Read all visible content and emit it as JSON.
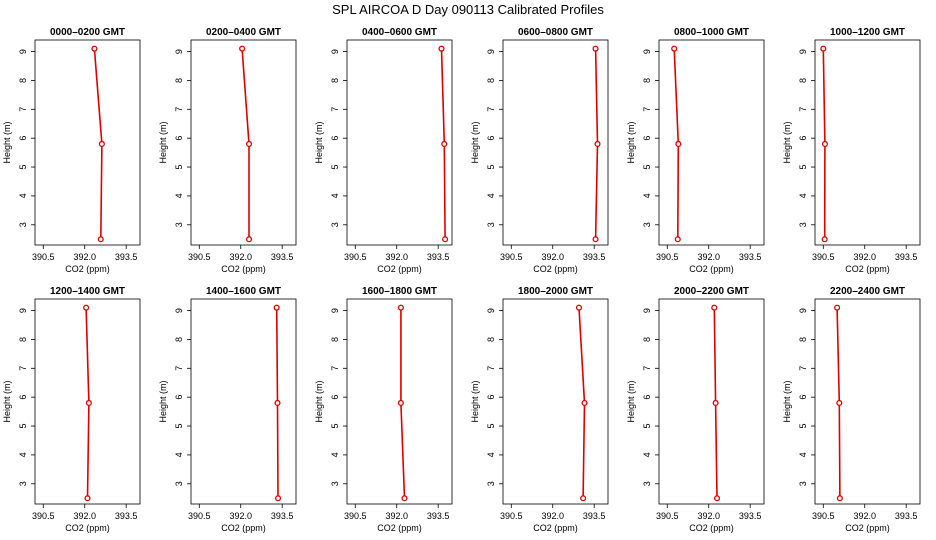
{
  "figure": {
    "title": "SPL AIRCOA D  Day 090113  Calibrated Profiles"
  },
  "chart_data": [
    {
      "type": "line",
      "title": "0000–0200 GMT",
      "xlabel": "CO2 (ppm)",
      "ylabel": "Height (m)",
      "xlim": [
        390.2,
        394.0
      ],
      "ylim": [
        2.3,
        9.4
      ],
      "xticks": [
        "390.5",
        "392.0",
        "393.5"
      ],
      "yticks": [
        "3",
        "4",
        "5",
        "6",
        "7",
        "8",
        "9"
      ],
      "grid": false,
      "points": [
        {
          "x": 392.58,
          "y": 2.5
        },
        {
          "x": 392.62,
          "y": 5.8
        },
        {
          "x": 392.35,
          "y": 9.1
        }
      ]
    },
    {
      "type": "line",
      "title": "0200–0400 GMT",
      "xlabel": "CO2 (ppm)",
      "ylabel": "Height (m)",
      "xlim": [
        390.2,
        394.0
      ],
      "ylim": [
        2.3,
        9.4
      ],
      "xticks": [
        "390.5",
        "392.0",
        "393.5"
      ],
      "yticks": [
        "3",
        "4",
        "5",
        "6",
        "7",
        "8",
        "9"
      ],
      "grid": false,
      "points": [
        {
          "x": 392.3,
          "y": 2.5
        },
        {
          "x": 392.3,
          "y": 5.8
        },
        {
          "x": 392.05,
          "y": 9.1
        }
      ]
    },
    {
      "type": "line",
      "title": "0400–0600 GMT",
      "xlabel": "CO2 (ppm)",
      "ylabel": "Height (m)",
      "xlim": [
        390.2,
        394.0
      ],
      "ylim": [
        2.3,
        9.4
      ],
      "xticks": [
        "390.5",
        "392.0",
        "393.5"
      ],
      "yticks": [
        "3",
        "4",
        "5",
        "6",
        "7",
        "8",
        "9"
      ],
      "grid": false,
      "points": [
        {
          "x": 393.75,
          "y": 2.5
        },
        {
          "x": 393.72,
          "y": 5.8
        },
        {
          "x": 393.62,
          "y": 9.1
        }
      ]
    },
    {
      "type": "line",
      "title": "0600–0800 GMT",
      "xlabel": "CO2 (ppm)",
      "ylabel": "Height (m)",
      "xlim": [
        390.2,
        394.0
      ],
      "ylim": [
        2.3,
        9.4
      ],
      "xticks": [
        "390.5",
        "392.0",
        "393.5"
      ],
      "yticks": [
        "3",
        "4",
        "5",
        "6",
        "7",
        "8",
        "9"
      ],
      "grid": false,
      "points": [
        {
          "x": 393.55,
          "y": 2.5
        },
        {
          "x": 393.62,
          "y": 5.8
        },
        {
          "x": 393.55,
          "y": 9.1
        }
      ]
    },
    {
      "type": "line",
      "title": "0800–1000 GMT",
      "xlabel": "CO2 (ppm)",
      "ylabel": "Height (m)",
      "xlim": [
        390.2,
        394.0
      ],
      "ylim": [
        2.3,
        9.4
      ],
      "xticks": [
        "390.5",
        "392.0",
        "393.5"
      ],
      "yticks": [
        "3",
        "4",
        "5",
        "6",
        "7",
        "8",
        "9"
      ],
      "grid": false,
      "points": [
        {
          "x": 390.88,
          "y": 2.5
        },
        {
          "x": 390.9,
          "y": 5.8
        },
        {
          "x": 390.75,
          "y": 9.1
        }
      ]
    },
    {
      "type": "line",
      "title": "1000–1200 GMT",
      "xlabel": "CO2 (ppm)",
      "ylabel": "Height (m)",
      "xlim": [
        390.2,
        394.0
      ],
      "ylim": [
        2.3,
        9.4
      ],
      "xticks": [
        "390.5",
        "392.0",
        "393.5"
      ],
      "yticks": [
        "3",
        "4",
        "5",
        "6",
        "7",
        "8",
        "9"
      ],
      "grid": false,
      "points": [
        {
          "x": 390.55,
          "y": 2.5
        },
        {
          "x": 390.56,
          "y": 5.8
        },
        {
          "x": 390.5,
          "y": 9.1
        }
      ]
    },
    {
      "type": "line",
      "title": "1200–1400 GMT",
      "xlabel": "CO2 (ppm)",
      "ylabel": "Height (m)",
      "xlim": [
        390.2,
        394.0
      ],
      "ylim": [
        2.3,
        9.4
      ],
      "xticks": [
        "390.5",
        "392.0",
        "393.5"
      ],
      "yticks": [
        "3",
        "4",
        "5",
        "6",
        "7",
        "8",
        "9"
      ],
      "grid": false,
      "points": [
        {
          "x": 392.1,
          "y": 2.5
        },
        {
          "x": 392.15,
          "y": 5.8
        },
        {
          "x": 392.05,
          "y": 9.1
        }
      ]
    },
    {
      "type": "line",
      "title": "1400–1600 GMT",
      "xlabel": "CO2 (ppm)",
      "ylabel": "Height (m)",
      "xlim": [
        390.2,
        394.0
      ],
      "ylim": [
        2.3,
        9.4
      ],
      "xticks": [
        "390.5",
        "392.0",
        "393.5"
      ],
      "yticks": [
        "3",
        "4",
        "5",
        "6",
        "7",
        "8",
        "9"
      ],
      "grid": false,
      "points": [
        {
          "x": 393.35,
          "y": 2.5
        },
        {
          "x": 393.33,
          "y": 5.8
        },
        {
          "x": 393.3,
          "y": 9.1
        }
      ]
    },
    {
      "type": "line",
      "title": "1600–1800 GMT",
      "xlabel": "CO2 (ppm)",
      "ylabel": "Height (m)",
      "xlim": [
        390.2,
        394.0
      ],
      "ylim": [
        2.3,
        9.4
      ],
      "xticks": [
        "390.5",
        "392.0",
        "393.5"
      ],
      "yticks": [
        "3",
        "4",
        "5",
        "6",
        "7",
        "8",
        "9"
      ],
      "grid": false,
      "points": [
        {
          "x": 392.28,
          "y": 2.5
        },
        {
          "x": 392.15,
          "y": 5.8
        },
        {
          "x": 392.15,
          "y": 9.1
        }
      ]
    },
    {
      "type": "line",
      "title": "1800–2000 GMT",
      "xlabel": "CO2 (ppm)",
      "ylabel": "Height (m)",
      "xlim": [
        390.2,
        394.0
      ],
      "ylim": [
        2.3,
        9.4
      ],
      "xticks": [
        "390.5",
        "392.0",
        "393.5"
      ],
      "yticks": [
        "3",
        "4",
        "5",
        "6",
        "7",
        "8",
        "9"
      ],
      "grid": false,
      "points": [
        {
          "x": 393.1,
          "y": 2.5
        },
        {
          "x": 393.15,
          "y": 5.8
        },
        {
          "x": 392.95,
          "y": 9.1
        }
      ]
    },
    {
      "type": "line",
      "title": "2000–2200 GMT",
      "xlabel": "CO2 (ppm)",
      "ylabel": "Height (m)",
      "xlim": [
        390.2,
        394.0
      ],
      "ylim": [
        2.3,
        9.4
      ],
      "xticks": [
        "390.5",
        "392.0",
        "393.5"
      ],
      "yticks": [
        "3",
        "4",
        "5",
        "6",
        "7",
        "8",
        "9"
      ],
      "grid": false,
      "points": [
        {
          "x": 392.3,
          "y": 2.5
        },
        {
          "x": 392.25,
          "y": 5.8
        },
        {
          "x": 392.2,
          "y": 9.1
        }
      ]
    },
    {
      "type": "line",
      "title": "2200–2400 GMT",
      "xlabel": "CO2 (ppm)",
      "ylabel": "Height (m)",
      "xlim": [
        390.2,
        394.0
      ],
      "ylim": [
        2.3,
        9.4
      ],
      "xticks": [
        "390.5",
        "392.0",
        "393.5"
      ],
      "yticks": [
        "3",
        "4",
        "5",
        "6",
        "7",
        "8",
        "9"
      ],
      "grid": false,
      "points": [
        {
          "x": 391.1,
          "y": 2.5
        },
        {
          "x": 391.08,
          "y": 5.8
        },
        {
          "x": 391.0,
          "y": 9.1
        }
      ]
    }
  ],
  "style": {
    "series_color": "#dd0000",
    "axis_color": "#000000"
  }
}
